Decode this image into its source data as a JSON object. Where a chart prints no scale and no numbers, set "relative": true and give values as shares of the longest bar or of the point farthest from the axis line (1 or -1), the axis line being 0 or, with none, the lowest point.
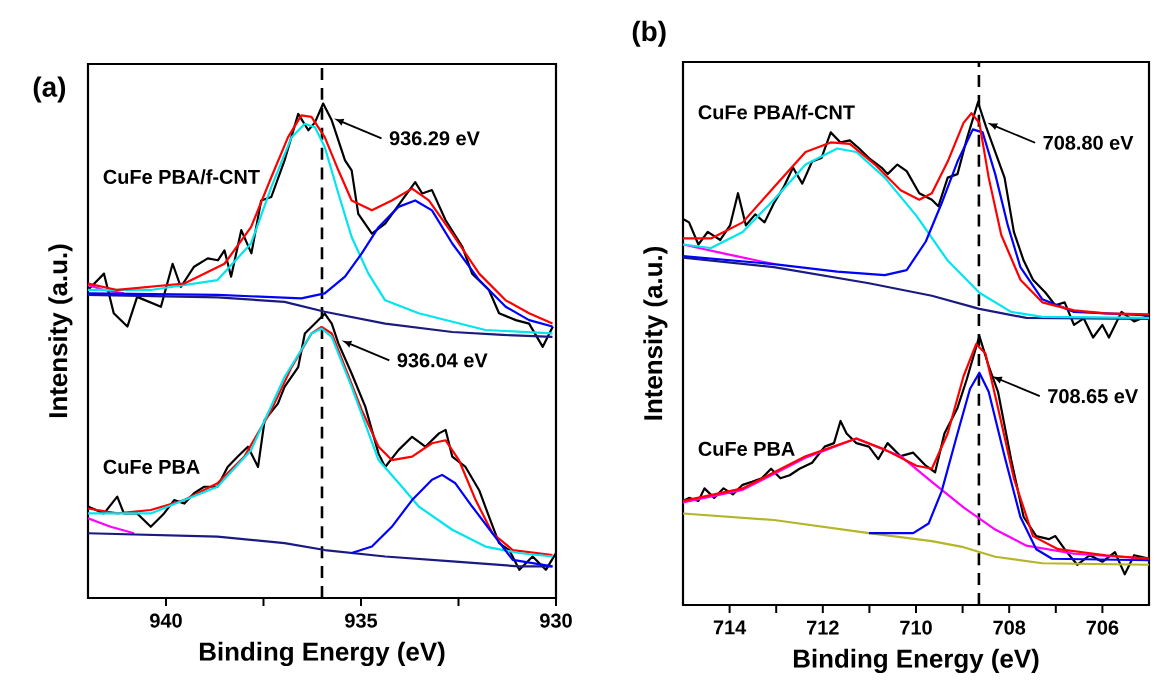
{
  "chart_data": [
    {
      "type": "line",
      "title": "(a)",
      "xlabel": "Binding Energy (eV)",
      "ylabel": "Intensity (a.u.)",
      "relative": true,
      "xlim": [
        942,
        930
      ],
      "xticks": [
        940,
        {
          "value": 937.5,
          "label": null
        },
        935,
        {
          "value": 932.5,
          "label": null
        },
        930
      ],
      "ref_lines": [
        {
          "axis": "x",
          "value": 936.0,
          "line_style": "dashed",
          "color": "#000000"
        }
      ],
      "annotations": [
        {
          "text": "936.29 eV",
          "x": 935.7,
          "y": 0.97
        },
        {
          "text": "936.04 eV",
          "x": 935.5,
          "y": 0.521
        }
      ],
      "series": [
        {
          "name": "CuFe PBA/f-CNT",
          "color": "#000000",
          "x": [
            942.0,
            941.59,
            941.34,
            940.99,
            940.74,
            940.13,
            939.83,
            939.62,
            939.28,
            938.93,
            938.67,
            938.5,
            938.33,
            938.07,
            937.81,
            937.56,
            937.3,
            936.96,
            936.61,
            936.35,
            936.18,
            935.97,
            935.75,
            935.41,
            935.24,
            935.07,
            934.72,
            934.38,
            933.95,
            933.61,
            933.43,
            933.18,
            932.83,
            932.4,
            932.15,
            931.72,
            931.46,
            931.03,
            930.69,
            930.34,
            930.08
          ],
          "values": [
            0.623,
            0.656,
            0.576,
            0.549,
            0.609,
            0.589,
            0.676,
            0.629,
            0.67,
            0.687,
            0.683,
            0.703,
            0.65,
            0.744,
            0.697,
            0.804,
            0.811,
            0.885,
            0.979,
            0.946,
            0.962,
            1.0,
            0.966,
            0.885,
            0.865,
            0.777,
            0.737,
            0.757,
            0.804,
            0.841,
            0.818,
            0.825,
            0.764,
            0.71,
            0.656,
            0.623,
            0.576,
            0.562,
            0.555,
            0.508,
            0.549
          ]
        },
        {
          "color": "#ff00ff",
          "x": [
            942.0,
            941.59,
            941.08
          ],
          "values": [
            0.633,
            0.623,
            0.616
          ]
        },
        {
          "color": "#1a1a80",
          "x": [
            942.0,
            938.68,
            936.96,
            935.93,
            934.38,
            932.66,
            931.37,
            930.09
          ],
          "values": [
            0.613,
            0.608,
            0.599,
            0.579,
            0.555,
            0.538,
            0.532,
            0.528
          ]
        },
        {
          "color": "#00e5ee",
          "x": [
            942.0,
            940.39,
            938.68,
            937.82,
            937.3,
            936.78,
            936.44,
            936.18,
            935.93,
            935.58,
            935.24,
            934.81,
            934.38,
            933.52,
            931.81,
            930.09
          ],
          "values": [
            0.623,
            0.623,
            0.643,
            0.717,
            0.831,
            0.932,
            0.959,
            0.952,
            0.912,
            0.818,
            0.73,
            0.656,
            0.602,
            0.576,
            0.542,
            0.535
          ]
        },
        {
          "color": "#0000ff",
          "x": [
            942.0,
            938.68,
            936.53,
            935.93,
            935.41,
            934.98,
            934.55,
            934.04,
            933.61,
            933.18,
            932.66,
            931.97,
            931.29,
            930.69,
            930.09
          ],
          "values": [
            0.616,
            0.613,
            0.606,
            0.616,
            0.65,
            0.697,
            0.75,
            0.791,
            0.804,
            0.784,
            0.717,
            0.643,
            0.589,
            0.562,
            0.549
          ]
        },
        {
          "color": "#ff0000",
          "x": [
            942.0,
            941.25,
            939.53,
            938.5,
            937.82,
            937.3,
            936.87,
            936.53,
            936.27,
            935.93,
            935.58,
            935.24,
            934.72,
            934.21,
            933.69,
            933.26,
            932.66,
            931.97,
            931.29,
            930.69,
            930.09
          ],
          "values": [
            0.636,
            0.623,
            0.636,
            0.676,
            0.75,
            0.851,
            0.932,
            0.976,
            0.973,
            0.932,
            0.865,
            0.804,
            0.784,
            0.804,
            0.828,
            0.804,
            0.737,
            0.656,
            0.602,
            0.576,
            0.555
          ]
        },
        {
          "name": "CuFe PBA",
          "color": "#000000",
          "x": [
            942.0,
            941.59,
            941.25,
            941.08,
            940.74,
            940.39,
            940.05,
            939.79,
            939.53,
            939.28,
            939.02,
            938.68,
            938.42,
            938.16,
            937.9,
            937.64,
            937.47,
            937.13,
            936.96,
            936.61,
            936.44,
            936.18,
            935.93,
            935.75,
            935.58,
            935.24,
            934.89,
            934.55,
            934.38,
            934.04,
            933.69,
            933.35,
            933.0,
            932.83,
            932.66,
            932.32,
            931.97,
            931.72,
            931.46,
            931.2,
            930.94,
            930.6,
            930.26,
            930.0
          ],
          "values": [
            0.185,
            0.171,
            0.205,
            0.171,
            0.171,
            0.144,
            0.171,
            0.198,
            0.191,
            0.212,
            0.225,
            0.225,
            0.265,
            0.286,
            0.306,
            0.265,
            0.36,
            0.393,
            0.427,
            0.467,
            0.535,
            0.555,
            0.575,
            0.555,
            0.515,
            0.454,
            0.387,
            0.292,
            0.265,
            0.299,
            0.326,
            0.306,
            0.333,
            0.34,
            0.286,
            0.265,
            0.218,
            0.165,
            0.111,
            0.097,
            0.057,
            0.084,
            0.057,
            0.091
          ]
        },
        {
          "color": "#ff00ff",
          "x": [
            942.0,
            941.42,
            940.82
          ],
          "values": [
            0.161,
            0.144,
            0.131
          ]
        },
        {
          "color": "#1a1a80",
          "x": [
            942.0,
            938.68,
            936.96,
            935.93,
            934.38,
            932.66,
            930.95,
            930.09
          ],
          "values": [
            0.131,
            0.124,
            0.111,
            0.097,
            0.084,
            0.074,
            0.064,
            0.064
          ]
        },
        {
          "color": "#ff0000",
          "x": [
            942.0,
            941.25,
            940.39,
            939.53,
            938.68,
            937.99,
            937.3,
            936.78,
            936.27,
            936.01,
            935.75,
            935.41,
            934.98,
            934.55,
            934.21,
            933.69,
            933.18,
            932.83,
            932.49,
            932.06,
            931.63,
            931.11,
            930.09
          ],
          "values": [
            0.181,
            0.171,
            0.178,
            0.198,
            0.232,
            0.286,
            0.38,
            0.467,
            0.535,
            0.548,
            0.535,
            0.467,
            0.38,
            0.306,
            0.279,
            0.286,
            0.313,
            0.319,
            0.279,
            0.198,
            0.131,
            0.097,
            0.087
          ]
        },
        {
          "color": "#00e5ee",
          "x": [
            942.0,
            940.39,
            938.68,
            937.82,
            936.96,
            936.27,
            936.01,
            935.75,
            935.24,
            934.55,
            933.95,
            933.52,
            932.66,
            931.81,
            930.95,
            930.09
          ],
          "values": [
            0.171,
            0.171,
            0.225,
            0.299,
            0.447,
            0.535,
            0.545,
            0.528,
            0.427,
            0.279,
            0.225,
            0.185,
            0.138,
            0.104,
            0.091,
            0.084
          ]
        },
        {
          "color": "#0000ff",
          "x": [
            935.24,
            934.72,
            934.21,
            933.69,
            933.18,
            932.92,
            932.58,
            932.15,
            931.63,
            931.11,
            930.09
          ],
          "values": [
            0.091,
            0.104,
            0.144,
            0.198,
            0.239,
            0.249,
            0.232,
            0.185,
            0.131,
            0.077,
            0.064
          ]
        }
      ]
    },
    {
      "type": "line",
      "title": "(b)",
      "xlabel": "Binding Energy (eV)",
      "ylabel": "Intensity (a.u.)",
      "relative": true,
      "xlim": [
        715,
        705
      ],
      "xticks": [
        714,
        {
          "value": 713,
          "label": null
        },
        712,
        {
          "value": 711,
          "label": null
        },
        710,
        {
          "value": 709,
          "label": null
        },
        708,
        {
          "value": 707,
          "label": null
        },
        706
      ],
      "ref_lines": [
        {
          "axis": "x",
          "value": 708.65,
          "line_style": "dashed",
          "color": "#000000"
        }
      ],
      "annotations": [
        {
          "text": "708.80 eV",
          "x": 708.47,
          "y": 0.959
        },
        {
          "text": "708.65 eV",
          "x": 708.37,
          "y": 0.455
        }
      ],
      "series": [
        {
          "name": "CuFe PBA/f-CNT",
          "color": "#000000",
          "x": [
            715.0,
            714.87,
            714.67,
            714.47,
            714.2,
            713.99,
            713.82,
            713.65,
            713.45,
            713.25,
            713.05,
            712.84,
            712.64,
            712.44,
            712.23,
            712.03,
            711.83,
            711.62,
            711.42,
            711.22,
            711.01,
            710.74,
            710.61,
            710.4,
            710.2,
            709.93,
            709.66,
            709.52,
            709.32,
            709.11,
            708.91,
            708.67,
            708.5,
            708.3,
            708.1,
            707.9,
            707.69,
            707.49,
            707.22,
            707.01,
            706.81,
            706.61,
            706.4,
            706.2,
            706.0,
            705.86,
            705.59,
            705.32,
            705.0
          ],
          "values": [
            0.768,
            0.761,
            0.717,
            0.742,
            0.726,
            0.755,
            0.819,
            0.755,
            0.777,
            0.761,
            0.799,
            0.831,
            0.87,
            0.838,
            0.882,
            0.889,
            0.94,
            0.92,
            0.924,
            0.908,
            0.889,
            0.87,
            0.857,
            0.876,
            0.863,
            0.819,
            0.806,
            0.793,
            0.85,
            0.857,
            0.927,
            1.0,
            0.952,
            0.901,
            0.85,
            0.742,
            0.685,
            0.647,
            0.621,
            0.596,
            0.602,
            0.557,
            0.57,
            0.532,
            0.557,
            0.532,
            0.583,
            0.564,
            0.576
          ]
        },
        {
          "color": "#ff00ff",
          "x": [
            715.0,
            714.06,
            713.05
          ],
          "values": [
            0.717,
            0.698,
            0.678
          ]
        },
        {
          "color": "#1a1a80",
          "x": [
            715.0,
            713.05,
            711.01,
            709.66,
            708.64,
            707.63,
            705.0
          ],
          "values": [
            0.691,
            0.672,
            0.64,
            0.615,
            0.589,
            0.571,
            0.569
          ]
        },
        {
          "color": "#00e5ee",
          "x": [
            715.0,
            714.4,
            713.72,
            713.05,
            712.37,
            711.69,
            711.28,
            710.67,
            709.99,
            709.32,
            708.64,
            707.96,
            707.29,
            705.0
          ],
          "values": [
            0.717,
            0.71,
            0.742,
            0.806,
            0.876,
            0.908,
            0.901,
            0.85,
            0.774,
            0.685,
            0.621,
            0.583,
            0.573,
            0.571
          ]
        },
        {
          "color": "#0000ff",
          "x": [
            715.0,
            713.05,
            711.69,
            710.67,
            710.2,
            709.79,
            709.45,
            709.11,
            708.78,
            708.57,
            708.3,
            708.03,
            707.76,
            707.29,
            706.61,
            705.0
          ],
          "values": [
            0.694,
            0.678,
            0.663,
            0.656,
            0.666,
            0.723,
            0.799,
            0.882,
            0.946,
            0.94,
            0.857,
            0.755,
            0.672,
            0.608,
            0.583,
            0.576
          ]
        },
        {
          "color": "#ff0000",
          "x": [
            715.0,
            714.4,
            713.72,
            713.05,
            712.37,
            711.83,
            711.42,
            710.88,
            710.33,
            709.93,
            709.66,
            709.32,
            708.98,
            708.81,
            708.64,
            708.44,
            708.17,
            707.76,
            707.29,
            706.61,
            705.93,
            705.0
          ],
          "values": [
            0.729,
            0.729,
            0.761,
            0.831,
            0.901,
            0.92,
            0.917,
            0.876,
            0.825,
            0.806,
            0.819,
            0.882,
            0.959,
            0.978,
            0.959,
            0.85,
            0.736,
            0.647,
            0.602,
            0.586,
            0.58,
            0.578
          ]
        },
        {
          "name": "CuFe PBA",
          "color": "#000000",
          "x": [
            715.0,
            714.87,
            714.67,
            714.54,
            714.33,
            714.13,
            713.93,
            713.72,
            713.52,
            713.31,
            713.11,
            712.91,
            712.71,
            712.5,
            712.23,
            711.96,
            711.76,
            711.62,
            711.49,
            711.28,
            711.01,
            710.81,
            710.61,
            710.33,
            710.06,
            709.79,
            709.59,
            709.39,
            709.11,
            708.91,
            708.64,
            708.44,
            708.24,
            707.96,
            707.69,
            707.42,
            707.15,
            707.01,
            706.81,
            706.54,
            706.27,
            706.0,
            705.73,
            705.52,
            705.32,
            705.0
          ],
          "values": [
            0.207,
            0.213,
            0.207,
            0.232,
            0.213,
            0.232,
            0.22,
            0.239,
            0.245,
            0.252,
            0.271,
            0.252,
            0.258,
            0.271,
            0.283,
            0.315,
            0.322,
            0.366,
            0.341,
            0.322,
            0.315,
            0.29,
            0.322,
            0.296,
            0.303,
            0.277,
            0.264,
            0.341,
            0.392,
            0.449,
            0.535,
            0.475,
            0.424,
            0.29,
            0.175,
            0.137,
            0.131,
            0.137,
            0.111,
            0.08,
            0.099,
            0.086,
            0.105,
            0.061,
            0.099,
            0.092
          ]
        },
        {
          "color": "#b5b52a",
          "x": [
            715.0,
            713.05,
            711.01,
            709.66,
            708.98,
            708.3,
            707.29,
            705.0
          ],
          "values": [
            0.182,
            0.169,
            0.143,
            0.127,
            0.115,
            0.096,
            0.083,
            0.08
          ]
        },
        {
          "color": "#ff00ff",
          "x": [
            715.0,
            713.72,
            712.37,
            711.28,
            710.33,
            709.66,
            708.98,
            708.3,
            707.63,
            706.61,
            705.0
          ],
          "values": [
            0.204,
            0.229,
            0.293,
            0.331,
            0.296,
            0.245,
            0.194,
            0.15,
            0.118,
            0.102,
            0.092
          ]
        },
        {
          "color": "#0000ff",
          "x": [
            711.01,
            710.06,
            709.73,
            709.45,
            709.11,
            708.84,
            708.64,
            708.44,
            708.1,
            707.76,
            707.42,
            707.08,
            705.0
          ],
          "values": [
            0.143,
            0.143,
            0.162,
            0.226,
            0.341,
            0.43,
            0.462,
            0.424,
            0.296,
            0.175,
            0.111,
            0.092,
            0.089
          ]
        },
        {
          "color": "#ff0000",
          "x": [
            715.0,
            713.72,
            712.37,
            711.28,
            710.67,
            709.99,
            709.66,
            709.32,
            708.98,
            708.71,
            708.51,
            708.24,
            707.9,
            707.49,
            706.95,
            705.93,
            705.0
          ],
          "values": [
            0.207,
            0.232,
            0.296,
            0.331,
            0.309,
            0.277,
            0.271,
            0.341,
            0.455,
            0.519,
            0.5,
            0.392,
            0.252,
            0.137,
            0.111,
            0.099,
            0.092
          ]
        }
      ]
    }
  ]
}
